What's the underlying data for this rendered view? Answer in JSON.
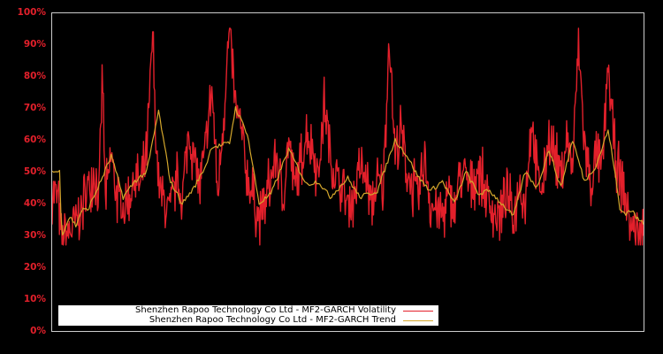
{
  "chart_data": {
    "type": "line",
    "title": "",
    "xlabel": "",
    "ylabel": "",
    "ylim": [
      0,
      100
    ],
    "y_tick_labels": [
      "0%",
      "10%",
      "20%",
      "30%",
      "40%",
      "50%",
      "60%",
      "70%",
      "80%",
      "90%",
      "100%"
    ],
    "x_tick_labels": [],
    "grid": false,
    "legend_position": "lower left",
    "background": "#000000",
    "frame_color": "#cccccc",
    "series": [
      {
        "name": "Shenzhen Rapoo Technology Co Ltd - MF2-GARCH Volatility",
        "color": "#e3202b",
        "x_frac": [
          0.0,
          0.01,
          0.015,
          0.02,
          0.03,
          0.04,
          0.05,
          0.06,
          0.07,
          0.08,
          0.085,
          0.09,
          0.1,
          0.11,
          0.12,
          0.13,
          0.14,
          0.15,
          0.16,
          0.17,
          0.175,
          0.18,
          0.19,
          0.2,
          0.21,
          0.22,
          0.23,
          0.24,
          0.25,
          0.26,
          0.27,
          0.28,
          0.29,
          0.3,
          0.31,
          0.32,
          0.33,
          0.34,
          0.35,
          0.36,
          0.37,
          0.38,
          0.39,
          0.4,
          0.41,
          0.42,
          0.43,
          0.44,
          0.45,
          0.46,
          0.47,
          0.48,
          0.49,
          0.5,
          0.51,
          0.52,
          0.53,
          0.54,
          0.55,
          0.56,
          0.57,
          0.58,
          0.59,
          0.6,
          0.61,
          0.62,
          0.63,
          0.64,
          0.65,
          0.66,
          0.67,
          0.68,
          0.69,
          0.7,
          0.71,
          0.72,
          0.73,
          0.74,
          0.75,
          0.76,
          0.77,
          0.78,
          0.79,
          0.8,
          0.81,
          0.82,
          0.83,
          0.84,
          0.85,
          0.86,
          0.87,
          0.88,
          0.89,
          0.9,
          0.91,
          0.92,
          0.93,
          0.94,
          0.95,
          0.96,
          0.97,
          0.98,
          0.99,
          1.0
        ],
        "values": [
          44,
          42,
          28,
          30,
          31,
          34,
          38,
          45,
          50,
          44,
          83,
          40,
          55,
          42,
          38,
          42,
          48,
          45,
          55,
          93,
          62,
          45,
          40,
          38,
          48,
          41,
          62,
          55,
          45,
          58,
          76,
          42,
          68,
          95,
          70,
          62,
          48,
          42,
          35,
          40,
          48,
          55,
          40,
          60,
          45,
          52,
          62,
          58,
          48,
          72,
          55,
          48,
          44,
          40,
          42,
          52,
          48,
          40,
          46,
          45,
          94,
          55,
          62,
          50,
          45,
          42,
          55,
          40,
          38,
          36,
          42,
          38,
          50,
          48,
          44,
          52,
          45,
          40,
          36,
          38,
          42,
          35,
          46,
          40,
          66,
          48,
          44,
          62,
          55,
          48,
          60,
          52,
          89,
          60,
          45,
          55,
          50,
          84,
          58,
          48,
          40,
          33,
          31,
          30
        ],
        "noise_amplitude": 8
      },
      {
        "name": "Shenzhen Rapoo Technology Co Ltd - MF2-GARCH Trend",
        "color": "#d4a72c",
        "x_frac": [
          0.0,
          0.013,
          0.016,
          0.03,
          0.04,
          0.05,
          0.06,
          0.08,
          0.1,
          0.12,
          0.14,
          0.16,
          0.18,
          0.2,
          0.22,
          0.24,
          0.26,
          0.27,
          0.28,
          0.3,
          0.31,
          0.33,
          0.35,
          0.37,
          0.4,
          0.43,
          0.45,
          0.47,
          0.5,
          0.52,
          0.55,
          0.58,
          0.6,
          0.62,
          0.64,
          0.66,
          0.68,
          0.7,
          0.72,
          0.74,
          0.76,
          0.78,
          0.8,
          0.82,
          0.84,
          0.86,
          0.88,
          0.9,
          0.92,
          0.94,
          0.95,
          0.96,
          0.97,
          0.98,
          0.99,
          1.0
        ],
        "values": [
          50,
          50,
          30,
          36,
          33,
          38,
          38,
          46,
          55,
          42,
          47,
          50,
          69,
          47,
          40,
          45,
          52,
          58,
          58,
          59,
          70,
          62,
          40,
          43,
          57,
          46,
          47,
          42,
          48,
          42,
          44,
          60,
          55,
          48,
          44,
          47,
          40,
          50,
          43,
          44,
          40,
          36,
          50,
          45,
          57,
          45,
          60,
          47,
          52,
          63,
          52,
          38,
          37,
          38,
          35,
          34
        ]
      }
    ]
  },
  "legend": {
    "items": [
      {
        "label": "Shenzhen Rapoo Technology Co Ltd - MF2-GARCH Volatility",
        "color": "#e3202b"
      },
      {
        "label": "Shenzhen Rapoo Technology Co Ltd - MF2-GARCH Trend",
        "color": "#d4a72c"
      }
    ]
  }
}
